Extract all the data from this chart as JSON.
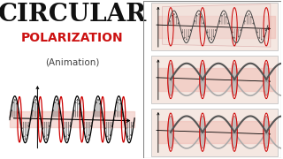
{
  "title_line1": "CIRCULAR",
  "title_line2": "POLARIZATION",
  "subtitle": "(Animation)",
  "bg_color": "#ffffff",
  "right_bg": "#f5e8e2",
  "left_wave_bg": "#f8eeeb",
  "title1_color": "#111111",
  "title2_color": "#cc1111",
  "subtitle_color": "#444444",
  "red_circle": "#cc0000",
  "dark_line": "#222222",
  "gray_helix": "#888888",
  "pink_tube": "#f0c0b8",
  "right_border": "#999999",
  "left_border": "#888888"
}
